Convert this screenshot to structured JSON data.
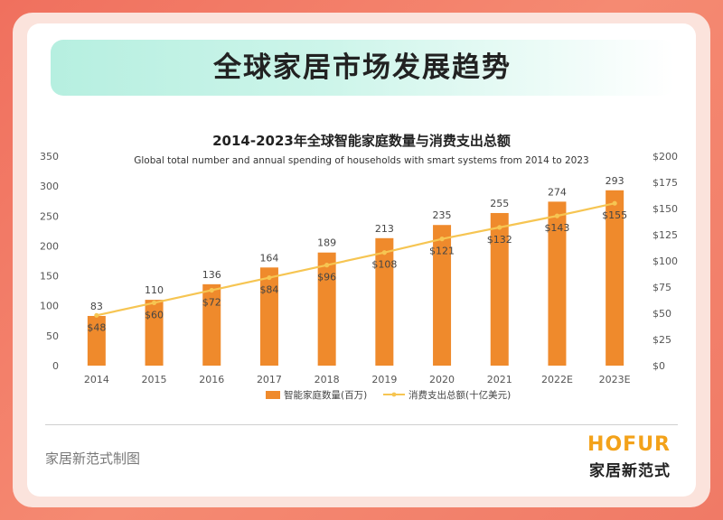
{
  "header": {
    "title": "全球家居市场发展趋势"
  },
  "footer": {
    "credit": "家居新范式制图",
    "brand_en": "HOFUR",
    "brand_cn": "家居新范式"
  },
  "colors": {
    "bar": "#ef8a2c",
    "line": "#f6c552",
    "accent_title_bg": "#c2f2e5"
  },
  "chart_data": {
    "type": "bar",
    "title": "2014-2023年全球智能家庭数量与消费支出总额",
    "subtitle": "Global total number and  annual spending of households with smart systems from 2014 to 2023",
    "categories": [
      "2014",
      "2015",
      "2016",
      "2017",
      "2018",
      "2019",
      "2020",
      "2021",
      "2022E",
      "2023E"
    ],
    "series": [
      {
        "name": "智能家庭数量(百万)",
        "type": "bar",
        "axis": "left",
        "values": [
          83,
          110,
          136,
          164,
          189,
          213,
          235,
          255,
          274,
          293
        ],
        "labels": [
          "83",
          "110",
          "136",
          "164",
          "189",
          "213",
          "235",
          "255",
          "274",
          "293"
        ]
      },
      {
        "name": "消费支出总额(十亿美元)",
        "type": "line",
        "axis": "right",
        "values": [
          48,
          60,
          72,
          84,
          96,
          108,
          121,
          132,
          143,
          155
        ],
        "labels": [
          "$48",
          "$60",
          "$72",
          "$84",
          "$96",
          "$108",
          "$121",
          "$132",
          "$143",
          "$155"
        ]
      }
    ],
    "ylim": [
      0,
      350
    ],
    "yticks": [
      "0",
      "50",
      "100",
      "150",
      "200",
      "250",
      "300",
      "350"
    ],
    "y2lim": [
      0,
      200
    ],
    "y2ticks": [
      "$0",
      "$25",
      "$50",
      "$75",
      "$100",
      "$125",
      "$150",
      "$175",
      "$200"
    ],
    "legend": "bottom",
    "grid": false
  }
}
